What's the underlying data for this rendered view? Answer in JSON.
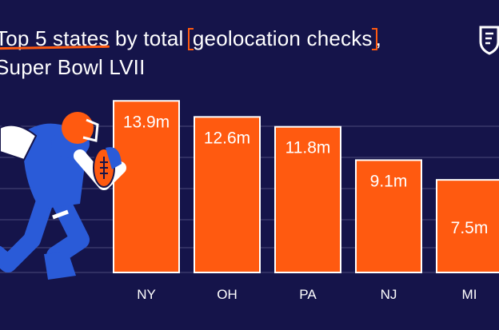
{
  "header": {
    "title_part1": "Top 5 states",
    "title_part2": " by total ",
    "title_part3": "geolocation checks",
    "title_part4": ",",
    "title_line2": "Super Bowl LVII"
  },
  "colors": {
    "background": "#15144a",
    "bar": "#ff5a10",
    "bar_border": "#ffffff",
    "gridline": "#4a4a7a",
    "text": "#ffffff"
  },
  "logo": {
    "icon": "shield-logo-icon"
  },
  "illustration": {
    "icon": "football-player-icon"
  },
  "chart_data": {
    "type": "bar",
    "categories": [
      "NY",
      "OH",
      "PA",
      "NJ",
      "MI"
    ],
    "values": [
      13.9,
      12.6,
      11.8,
      9.1,
      7.5
    ],
    "value_labels": [
      "13.9m",
      "12.6m",
      "11.8m",
      "9.1m",
      "7.5m"
    ],
    "ylim": [
      0,
      14.5
    ],
    "grid": true
  }
}
